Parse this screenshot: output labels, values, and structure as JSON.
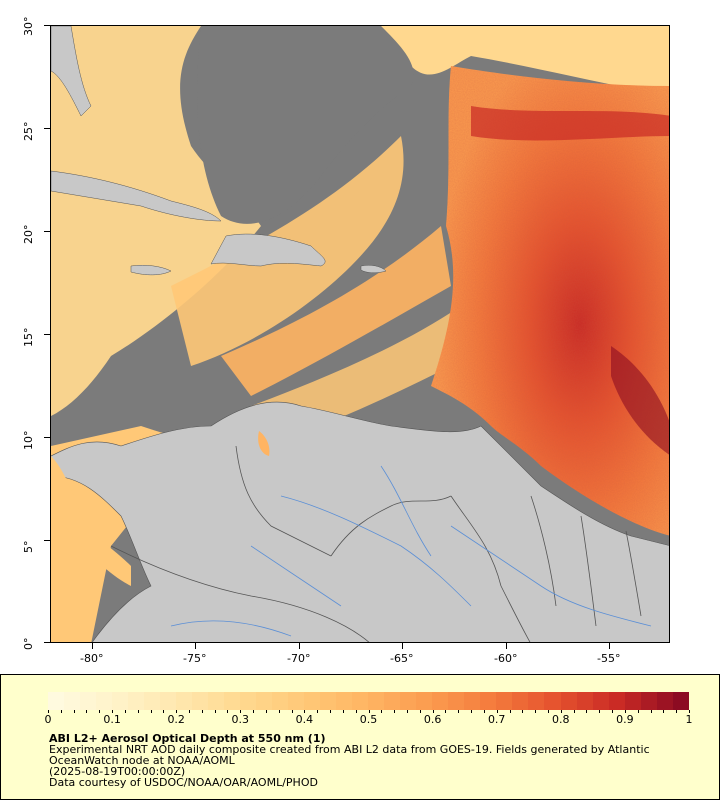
{
  "map": {
    "lat_labels": [
      "30°",
      "25°",
      "20°",
      "15°",
      "10°",
      "5°",
      "0°"
    ],
    "lon_labels": [
      "-80°",
      "-75°",
      "-70°",
      "-65°",
      "-60°",
      "-55°"
    ],
    "lat_range": [
      0,
      30
    ],
    "lon_range": [
      -82.2,
      -52.5
    ],
    "colors": {
      "no_data": "#7b7b7b",
      "land": "#c8c8c8",
      "borders": "#555555",
      "rivers": "#5b8fd6"
    }
  },
  "legend": {
    "ticks": [
      "0",
      "0.1",
      "0.2",
      "0.3",
      "0.4",
      "0.5",
      "0.6",
      "0.7",
      "0.8",
      "0.9",
      "1"
    ],
    "colors": [
      "#fffadf",
      "#fff2c8",
      "#ffe7ad",
      "#ffd88f",
      "#ffc877",
      "#ffb462",
      "#fb9b4f",
      "#f47b3d",
      "#e5522e",
      "#c92a25",
      "#8c0b22"
    ],
    "range": [
      0,
      1
    ]
  },
  "caption": {
    "title": "ABI L2+ Aerosol Optical Depth at 550 nm (1)",
    "line1": "Experimental NRT AOD daily composite created from ABI L2 data from GOES-19. Fields generated by Atlantic OceanWatch node at NOAA/AOML",
    "line2": "(2025-08-19T00:00:00Z)",
    "line3": "Data courtesy of USDOC/NOAA/OAR/AOML/PHOD"
  }
}
